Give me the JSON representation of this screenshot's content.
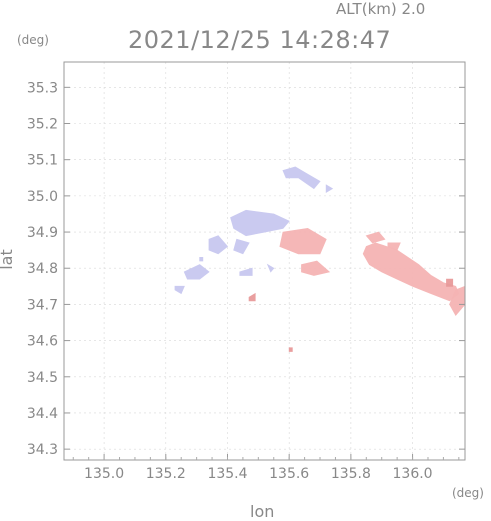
{
  "header": {
    "altitude_label": "ALT(km) 2.0",
    "timestamp": "2021/12/25 14:28:47"
  },
  "axes": {
    "x_unit": "(deg)",
    "y_unit": "(deg)",
    "x_title": "lon",
    "y_title": "lat"
  },
  "map_data": {
    "type": "scatter-map",
    "x_range": [
      134.87,
      136.17
    ],
    "y_range": [
      34.27,
      35.37
    ],
    "x_ticks": [
      "135.0",
      "135.2",
      "135.4",
      "135.6",
      "135.8",
      "136.0"
    ],
    "y_ticks": [
      "35.3",
      "35.2",
      "35.1",
      "35.0",
      "34.9",
      "34.8",
      "34.7",
      "34.6",
      "34.5",
      "34.4",
      "34.3"
    ],
    "colors": {
      "blue_echo": "#c8c8f0",
      "pink_echo": "#f5b4b4",
      "dark_pink": "#e89a9a"
    },
    "echoes": [
      {
        "color": "blue_echo",
        "points": [
          [
            135.58,
            35.07
          ],
          [
            135.62,
            35.08
          ],
          [
            135.66,
            35.06
          ],
          [
            135.7,
            35.04
          ],
          [
            135.68,
            35.02
          ],
          [
            135.63,
            35.05
          ],
          [
            135.59,
            35.05
          ]
        ]
      },
      {
        "color": "blue_echo",
        "points": [
          [
            135.72,
            35.03
          ],
          [
            135.74,
            35.02
          ],
          [
            135.72,
            35.01
          ]
        ]
      },
      {
        "color": "blue_echo",
        "points": [
          [
            135.41,
            34.94
          ],
          [
            135.46,
            34.96
          ],
          [
            135.55,
            34.95
          ],
          [
            135.6,
            34.93
          ],
          [
            135.58,
            34.91
          ],
          [
            135.52,
            34.9
          ],
          [
            135.46,
            34.89
          ],
          [
            135.42,
            34.91
          ]
        ]
      },
      {
        "color": "blue_echo",
        "points": [
          [
            135.34,
            34.88
          ],
          [
            135.37,
            34.89
          ],
          [
            135.4,
            34.86
          ],
          [
            135.37,
            34.84
          ],
          [
            135.34,
            34.85
          ]
        ]
      },
      {
        "color": "blue_echo",
        "points": [
          [
            135.43,
            34.88
          ],
          [
            135.47,
            34.87
          ],
          [
            135.45,
            34.84
          ],
          [
            135.42,
            34.85
          ]
        ]
      },
      {
        "color": "blue_echo",
        "points": [
          [
            135.31,
            34.83
          ],
          [
            135.32,
            34.83
          ],
          [
            135.32,
            34.82
          ],
          [
            135.31,
            34.82
          ]
        ]
      },
      {
        "color": "blue_echo",
        "points": [
          [
            135.26,
            34.79
          ],
          [
            135.31,
            34.81
          ],
          [
            135.34,
            34.79
          ],
          [
            135.31,
            34.77
          ],
          [
            135.27,
            34.77
          ]
        ]
      },
      {
        "color": "blue_echo",
        "points": [
          [
            135.23,
            34.75
          ],
          [
            135.26,
            34.75
          ],
          [
            135.25,
            34.73
          ],
          [
            135.23,
            34.74
          ]
        ]
      },
      {
        "color": "blue_echo",
        "points": [
          [
            135.44,
            34.79
          ],
          [
            135.48,
            34.8
          ],
          [
            135.48,
            34.78
          ],
          [
            135.44,
            34.78
          ]
        ]
      },
      {
        "color": "blue_echo",
        "points": [
          [
            135.53,
            34.81
          ],
          [
            135.55,
            34.8
          ],
          [
            135.54,
            34.79
          ]
        ]
      },
      {
        "color": "pink_echo",
        "points": [
          [
            135.58,
            34.9
          ],
          [
            135.66,
            34.91
          ],
          [
            135.72,
            34.88
          ],
          [
            135.7,
            34.84
          ],
          [
            135.63,
            34.84
          ],
          [
            135.57,
            34.86
          ]
        ]
      },
      {
        "color": "pink_echo",
        "points": [
          [
            135.64,
            34.81
          ],
          [
            135.69,
            34.82
          ],
          [
            135.73,
            34.79
          ],
          [
            135.68,
            34.78
          ],
          [
            135.64,
            34.79
          ]
        ]
      },
      {
        "color": "pink_echo",
        "points": [
          [
            135.85,
            34.89
          ],
          [
            135.89,
            34.9
          ],
          [
            135.91,
            34.88
          ],
          [
            135.87,
            34.87
          ]
        ]
      },
      {
        "color": "pink_echo",
        "points": [
          [
            135.85,
            34.86
          ],
          [
            135.88,
            34.87
          ],
          [
            135.95,
            34.85
          ],
          [
            136.02,
            34.81
          ],
          [
            136.06,
            34.78
          ],
          [
            136.1,
            34.76
          ],
          [
            136.14,
            34.75
          ],
          [
            136.15,
            34.73
          ],
          [
            136.12,
            34.71
          ],
          [
            136.06,
            34.73
          ],
          [
            136.0,
            34.75
          ],
          [
            135.95,
            34.77
          ],
          [
            135.9,
            34.79
          ],
          [
            135.86,
            34.81
          ],
          [
            135.84,
            34.84
          ]
        ]
      },
      {
        "color": "pink_echo",
        "points": [
          [
            135.92,
            34.87
          ],
          [
            135.96,
            34.87
          ],
          [
            135.95,
            34.85
          ],
          [
            135.92,
            34.86
          ]
        ]
      },
      {
        "color": "pink_echo",
        "points": [
          [
            136.14,
            34.74
          ],
          [
            136.17,
            34.75
          ],
          [
            136.17,
            34.7
          ],
          [
            136.14,
            34.67
          ],
          [
            136.12,
            34.7
          ]
        ]
      },
      {
        "color": "dark_pink",
        "points": [
          [
            136.11,
            34.77
          ],
          [
            136.13,
            34.77
          ],
          [
            136.13,
            34.75
          ],
          [
            136.11,
            34.75
          ]
        ]
      },
      {
        "color": "dark_pink",
        "points": [
          [
            135.47,
            34.72
          ],
          [
            135.49,
            34.73
          ],
          [
            135.49,
            34.71
          ],
          [
            135.47,
            34.71
          ]
        ]
      },
      {
        "color": "dark_pink",
        "points": [
          [
            135.6,
            34.58
          ],
          [
            135.61,
            34.58
          ],
          [
            135.61,
            34.57
          ],
          [
            135.6,
            34.57
          ]
        ]
      }
    ]
  }
}
